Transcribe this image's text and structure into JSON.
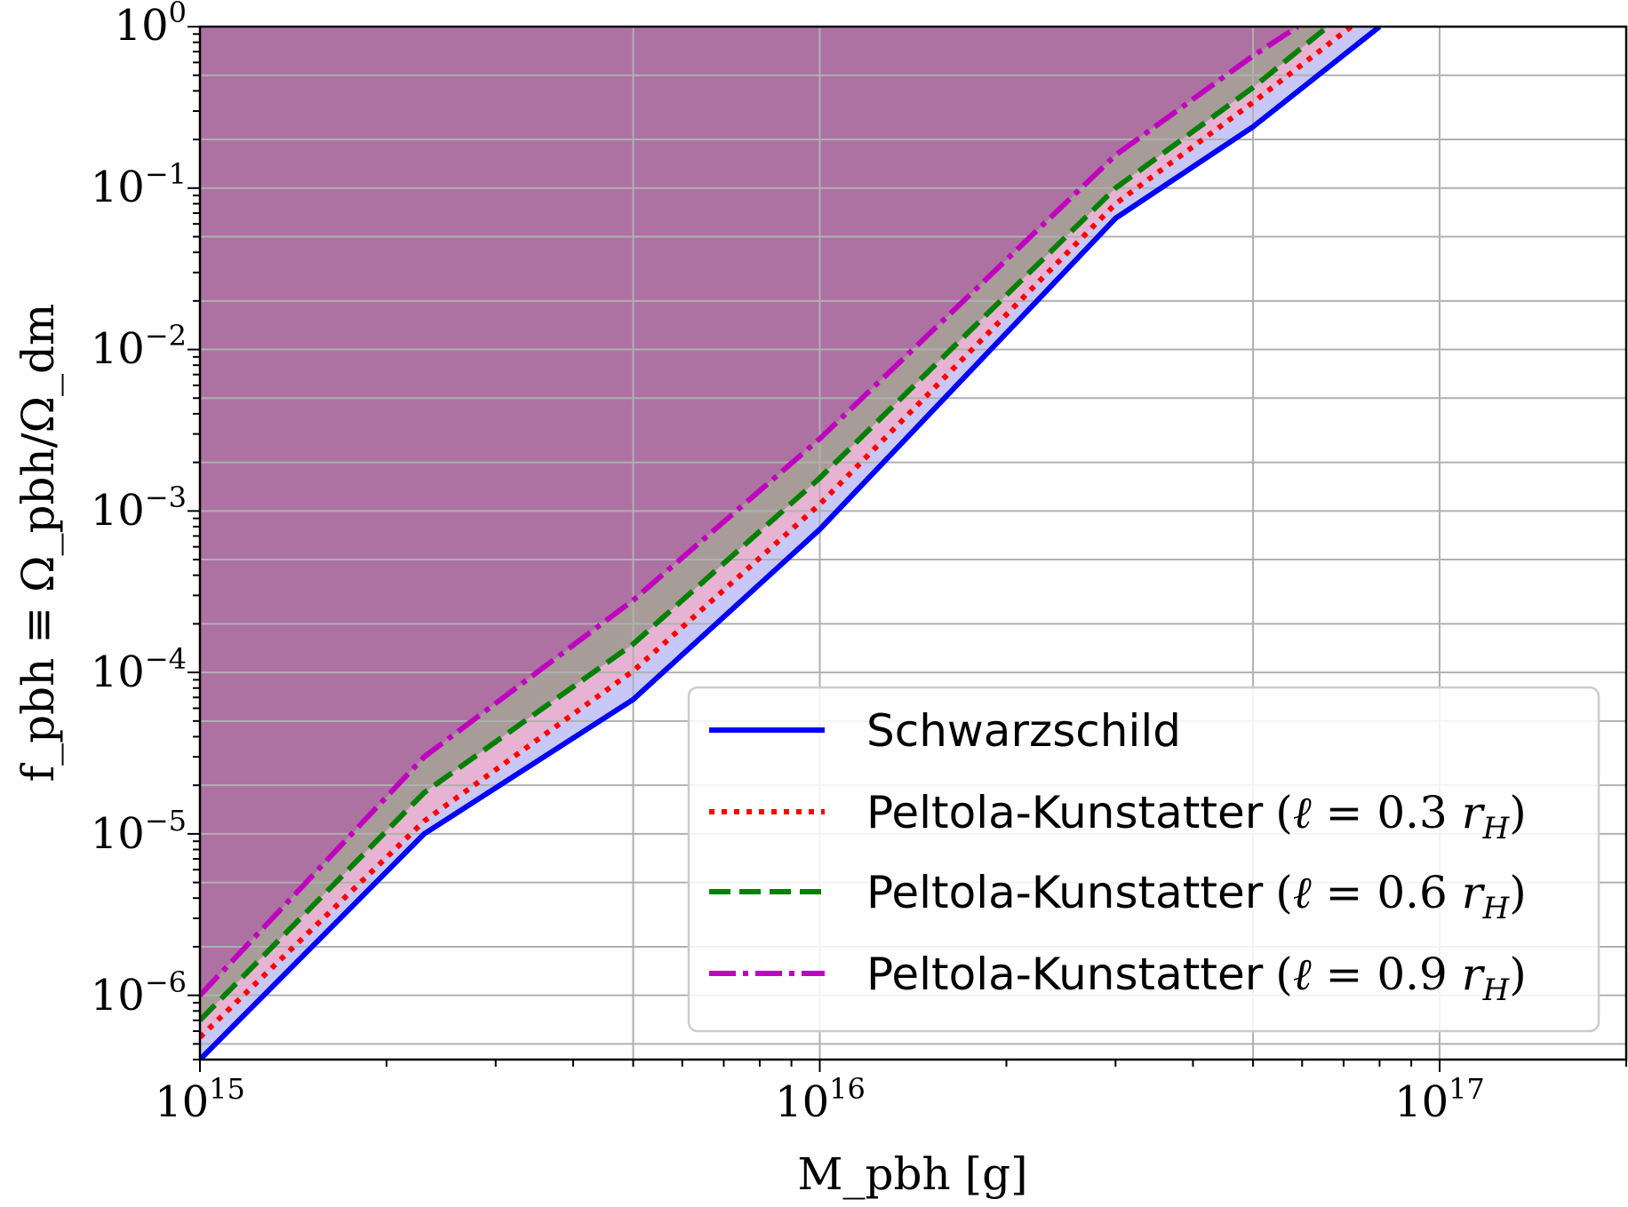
{
  "chart_data": {
    "type": "line",
    "xscale": "log",
    "yscale": "log",
    "xlim": [
      1000000000000000.0,
      2e+17
    ],
    "ylim": [
      4e-07,
      1
    ],
    "grid": true,
    "legend_position": "lower-right",
    "xlabel": "M_pbh [g]",
    "ylabel": "f_pbh ≡ Ω_pbh/Ω_dm",
    "x_ticks": [
      {
        "value": 1000000000000000.0,
        "base": "10",
        "exp": "15"
      },
      {
        "value": 1e+16,
        "base": "10",
        "exp": "16"
      },
      {
        "value": 1e+17,
        "base": "10",
        "exp": "17"
      }
    ],
    "y_ticks": [
      {
        "value": 1,
        "base": "10",
        "exp": "0"
      },
      {
        "value": 0.1,
        "base": "10",
        "exp": "−1"
      },
      {
        "value": 0.01,
        "base": "10",
        "exp": "−2"
      },
      {
        "value": 0.001,
        "base": "10",
        "exp": "−3"
      },
      {
        "value": 0.0001,
        "base": "10",
        "exp": "−4"
      },
      {
        "value": 1e-05,
        "base": "10",
        "exp": "−5"
      },
      {
        "value": 1e-06,
        "base": "10",
        "exp": "−6"
      }
    ],
    "series": [
      {
        "name": "Schwarzschild",
        "color": "#0000ff",
        "fill": "#c8c8f8",
        "dash": "solid",
        "x": [
          1000000000000000.0,
          2300000000000000.0,
          5000000000000000.0,
          1e+16,
          3e+16,
          5e+16,
          8e+16
        ],
        "y": [
          4e-07,
          1e-05,
          6.8e-05,
          0.00077,
          0.065,
          0.24,
          1.0
        ]
      },
      {
        "name": "Peltola-Kunstatter (ℓ = 0.3 r_H)",
        "name_parts": {
          "main": "Peltola-Kunstatter",
          "open": "(",
          "ell": "ℓ",
          "eq": " = 0.3 ",
          "r": "r",
          "sub": "H",
          "close": ")"
        },
        "color": "#ff0000",
        "fill": "#e6b4d2",
        "dash": "dotted",
        "x": [
          1000000000000000.0,
          2300000000000000.0,
          5000000000000000.0,
          1e+16,
          3e+16,
          5e+16,
          7.2e+16
        ],
        "y": [
          5.5e-07,
          1.2e-05,
          0.000102,
          0.0011,
          0.08,
          0.34,
          1.0
        ]
      },
      {
        "name": "Peltola-Kunstatter (ℓ = 0.6 r_H)",
        "name_parts": {
          "main": "Peltola-Kunstatter",
          "open": "(",
          "ell": "ℓ",
          "eq": " = 0.6 ",
          "r": "r",
          "sub": "H",
          "close": ")"
        },
        "color": "#008000",
        "fill": "#a89c98",
        "dash": "dashed",
        "x": [
          1000000000000000.0,
          2300000000000000.0,
          5000000000000000.0,
          1e+16,
          3e+16,
          5e+16,
          6.6e+16
        ],
        "y": [
          7e-07,
          1.8e-05,
          0.00015,
          0.0016,
          0.1,
          0.42,
          1.0
        ]
      },
      {
        "name": "Peltola-Kunstatter (ℓ = 0.9 r_H)",
        "name_parts": {
          "main": "Peltola-Kunstatter",
          "open": "(",
          "ell": "ℓ",
          "eq": " = 0.9 ",
          "r": "r",
          "sub": "H",
          "close": ")"
        },
        "color": "#bf00bf",
        "fill": "#ad72a2",
        "dash": "dashdot",
        "x": [
          1000000000000000.0,
          2300000000000000.0,
          5000000000000000.0,
          1e+16,
          3e+16,
          5e+16,
          5.9e+16
        ],
        "y": [
          1e-06,
          3e-05,
          0.00028,
          0.0028,
          0.16,
          0.66,
          1.0
        ]
      }
    ]
  }
}
